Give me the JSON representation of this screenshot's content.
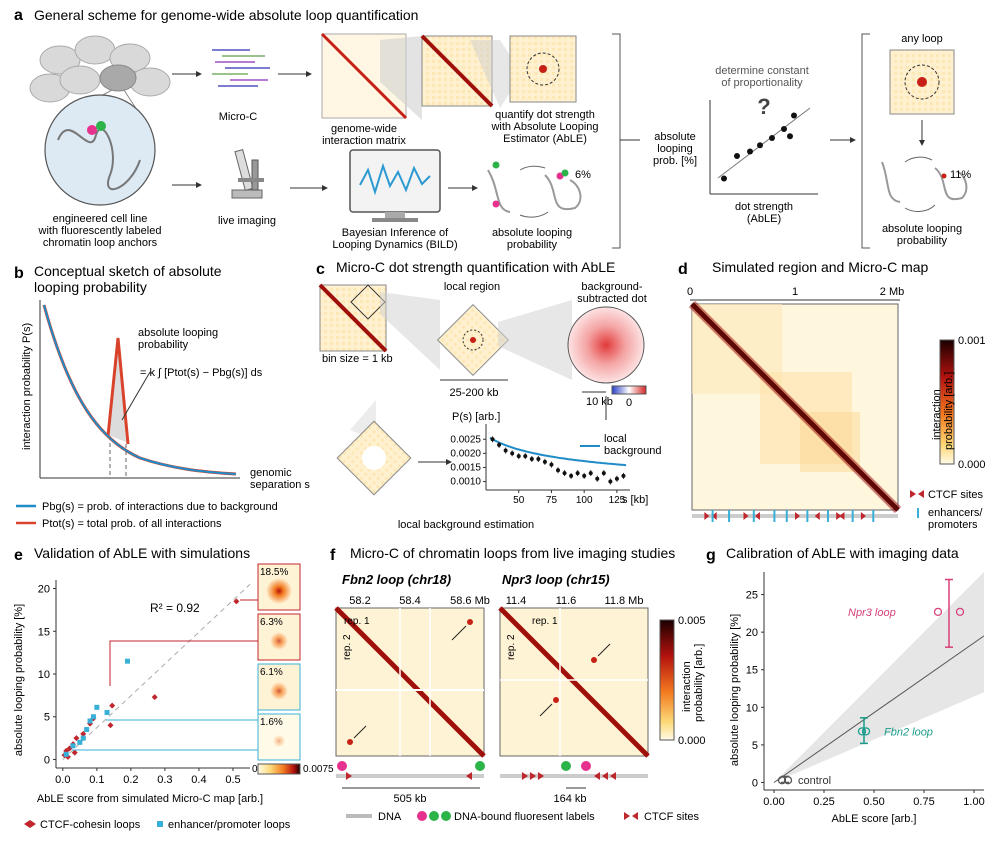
{
  "panel_a": {
    "letter": "a",
    "title": "General scheme for genome-wide absolute loop quantification",
    "cell_line_label": [
      "engineered cell line",
      "with fluorescently labeled",
      "chromatin loop anchors"
    ],
    "microc_label": "Micro-C",
    "live_imaging_label": "live imaging",
    "matrix_label": [
      "genome-wide",
      "interaction matrix"
    ],
    "quantify_label": [
      "quantify dot strength",
      "with Absolute Looping",
      "Estimator (AbLE)"
    ],
    "bild_label": [
      "Bayesian Inference of",
      "Looping Dynamics (BILD)"
    ],
    "abs_prob_label": [
      "absolute looping",
      "probability"
    ],
    "pct_left": "6%",
    "constant_label": [
      "determine constant",
      "of proportionality"
    ],
    "question": "?",
    "y_label": [
      "absolute",
      "looping",
      "prob. [%]"
    ],
    "x_label": [
      "dot strength",
      "(AbLE)"
    ],
    "any_loop_label": "any loop",
    "pct_right": "11%",
    "abs_prob_right_label": [
      "absolute looping",
      "probability"
    ],
    "scatter_points": [
      [
        0.12,
        0.15
      ],
      [
        0.25,
        0.4
      ],
      [
        0.38,
        0.45
      ],
      [
        0.48,
        0.52
      ],
      [
        0.6,
        0.6
      ],
      [
        0.72,
        0.7
      ],
      [
        0.78,
        0.62
      ],
      [
        0.82,
        0.85
      ]
    ]
  },
  "panel_b": {
    "letter": "b",
    "title": [
      "Conceptual sketch of absolute",
      "looping probability"
    ],
    "ylabel": "interaction probability P(s)",
    "annot": [
      "absolute looping",
      "probability"
    ],
    "formula": "= k ∫ [Ptot(s) − Pbg(s)] ds",
    "xlabel": [
      "genomic",
      "separation s"
    ],
    "legend_bg": "Pbg(s) = prob. of interactions due to background",
    "legend_tot": "Ptot(s) = total prob. of all interactions",
    "color_bg": "#1f8bc7",
    "color_tot": "#d9432b"
  },
  "panel_c": {
    "letter": "c",
    "title": "Micro-C dot strength quantification with AbLE",
    "bin_size": "bin size = 1 kb",
    "local_region": "local region",
    "range_label": "25-200 kb",
    "bg_sub_label": [
      "background-",
      "subtracted dot"
    ],
    "scale_10kb": "10 kb",
    "zero": "0",
    "local_bg_est": "local background estimation",
    "ps_ylabel": "P(s) [arb.]",
    "ps_xlabel": "s [kb]",
    "ps_legend": [
      "local",
      "background"
    ],
    "ps_yticks": [
      "0.0025",
      "0.0020",
      "0.0015",
      "0.0010"
    ],
    "ps_xticks": [
      "50",
      "75",
      "100",
      "125"
    ],
    "chart_data": {
      "type": "scatter",
      "title": "",
      "xlabel": "s [kb]",
      "ylabel": "P(s) [arb.]",
      "xlim": [
        25,
        135
      ],
      "ylim": [
        0.0007,
        0.0029
      ],
      "x": [
        30,
        35,
        40,
        45,
        50,
        55,
        60,
        65,
        70,
        75,
        80,
        85,
        90,
        95,
        100,
        105,
        110,
        115,
        120,
        125,
        130
      ],
      "y": [
        0.0025,
        0.0023,
        0.0021,
        0.002,
        0.0019,
        0.0019,
        0.0018,
        0.0018,
        0.0017,
        0.0016,
        0.0014,
        0.0013,
        0.0012,
        0.0013,
        0.0012,
        0.0013,
        0.0011,
        0.0013,
        0.001,
        0.0011,
        0.0012
      ],
      "fit": "local background (power-law)"
    }
  },
  "panel_d": {
    "letter": "d",
    "title": "Simulated region and Micro-C map",
    "axis_ticks": [
      "0",
      "1",
      "2 Mb"
    ],
    "cbar_max": "0.001",
    "cbar_min": "0.000",
    "cbar_label": [
      "interaction",
      "probability [arb.]"
    ],
    "legend_ctcf": "CTCF sites",
    "legend_enh": [
      "enhancers/",
      "promoters"
    ]
  },
  "panel_e": {
    "letter": "e",
    "title": "Validation of AbLE with simulations",
    "r2": "R² = 0.92",
    "insets": [
      "18.5%",
      "6.3%",
      "6.1%",
      "1.6%"
    ],
    "cbar_min": "0",
    "cbar_max": "0.0075",
    "legend_ctcf": "CTCF-cohesin loops",
    "legend_enh": "enhancer/promoter loops",
    "chart_data": {
      "type": "scatter",
      "title": "Validation of AbLE with simulations",
      "xlabel": "AbLE score from simulated Micro-C map [arb.]",
      "ylabel": "absolute looping probability [%]",
      "xlim": [
        -0.02,
        0.55
      ],
      "ylim": [
        -1,
        21
      ],
      "xticks": [
        "0.0",
        "0.1",
        "0.2",
        "0.3",
        "0.4",
        "0.5"
      ],
      "yticks": [
        "0",
        "5",
        "10",
        "15",
        "20"
      ],
      "series": [
        {
          "name": "CTCF-cohesin loops",
          "color": "#c0262d",
          "x": [
            0.005,
            0.01,
            0.015,
            0.02,
            0.03,
            0.035,
            0.04,
            0.06,
            0.08,
            0.09,
            0.14,
            0.145,
            0.27,
            0.51
          ],
          "y": [
            0.5,
            1.0,
            0.3,
            1.3,
            1.8,
            0.8,
            2.5,
            3.0,
            4.2,
            4.8,
            4.0,
            6.3,
            7.3,
            18.5
          ]
        },
        {
          "name": "enhancer/promoter loops",
          "color": "#39b0d7",
          "x": [
            0.01,
            0.03,
            0.05,
            0.06,
            0.07,
            0.08,
            0.09,
            0.1,
            0.13,
            0.19
          ],
          "y": [
            0.6,
            1.6,
            2.0,
            2.5,
            3.5,
            4.5,
            5.0,
            6.1,
            5.5,
            11.5
          ]
        }
      ]
    }
  },
  "panel_f": {
    "letter": "f",
    "title": "Micro-C of chromatin loops from live imaging studies",
    "fbn2_title": "Fbn2 loop (chr18)",
    "fbn2_ticks": [
      "58.2",
      "58.4",
      "58.6 Mb"
    ],
    "npr3_title": "Npr3 loop (chr15)",
    "npr3_ticks": [
      "11.4",
      "11.6",
      "11.8 Mb"
    ],
    "rep1": "rep. 1",
    "rep2": "rep. 2",
    "cbar_max": "0.005",
    "cbar_min": "0.000",
    "cbar_label": [
      "interaction",
      "probability [arb.]"
    ],
    "dist_fbn2": "505 kb",
    "dist_npr3": "164 kb",
    "legend_dna": "DNA",
    "legend_labels": "DNA-bound fluoresent labels",
    "legend_ctcf": "CTCF sites"
  },
  "panel_g": {
    "letter": "g",
    "title": "Calibration of AbLE with imaging data",
    "npr3": "Npr3 loop",
    "fbn2": "Fbn2 loop",
    "control": "control",
    "chart_data": {
      "type": "scatter",
      "title": "Calibration of AbLE with imaging data",
      "xlabel": "AbLE score [arb.]",
      "ylabel": "absolute looping probability [%]",
      "xlim": [
        -0.05,
        1.05
      ],
      "ylim": [
        -1,
        28
      ],
      "xticks": [
        "0.00",
        "0.25",
        "0.50",
        "0.75",
        "1.00"
      ],
      "yticks": [
        "0",
        "5",
        "10",
        "15",
        "20",
        "25"
      ],
      "fit_line": {
        "x": [
          0,
          1.05
        ],
        "y": [
          0,
          19.5
        ]
      },
      "points": [
        {
          "name": "Npr3 loop",
          "x": [
            0.82,
            0.93
          ],
          "y": 22.7,
          "yerr": [
            18.0,
            27.0
          ],
          "color": "#d6407a"
        },
        {
          "name": "Fbn2 loop",
          "x": [
            0.44,
            0.46
          ],
          "y": 6.8,
          "yerr": [
            5.2,
            8.6
          ],
          "color": "#1a9c8a"
        },
        {
          "name": "control",
          "x": [
            0.04,
            0.07
          ],
          "y": 0.3,
          "yerr": [
            0,
            0.8
          ],
          "color": "#555555"
        }
      ]
    }
  }
}
